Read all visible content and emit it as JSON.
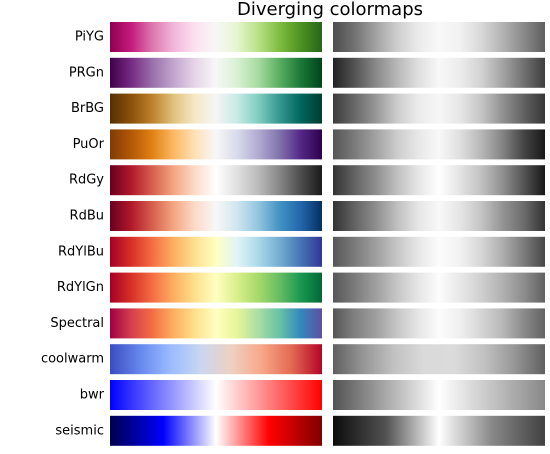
{
  "title": "Diverging colormaps",
  "colormaps": [
    {
      "name": "PiYG",
      "colors": [
        "#8e0152",
        "#c51b7d",
        "#de77ae",
        "#f1b6da",
        "#fde0ef",
        "#f7f7f7",
        "#e6f5d0",
        "#b8e186",
        "#7fbc41",
        "#4d9221",
        "#276419"
      ]
    },
    {
      "name": "PRGn",
      "colors": [
        "#40004b",
        "#762a83",
        "#9970ab",
        "#c2a5cf",
        "#e7d4e8",
        "#f7f7f7",
        "#d9f0d3",
        "#a6dba0",
        "#5aae61",
        "#1b7837",
        "#00441b"
      ]
    },
    {
      "name": "BrBG",
      "colors": [
        "#543005",
        "#8c510a",
        "#bf812d",
        "#dfc27d",
        "#f6e8c3",
        "#f5f5f5",
        "#c7eae5",
        "#80cdc1",
        "#35978f",
        "#01665e",
        "#003c30"
      ]
    },
    {
      "name": "PuOr",
      "colors": [
        "#7f3b08",
        "#b35806",
        "#e08214",
        "#fdb863",
        "#fee0b6",
        "#f7f7f7",
        "#d8daeb",
        "#b2abd2",
        "#8073ac",
        "#542788",
        "#2d004b"
      ]
    },
    {
      "name": "RdGy",
      "colors": [
        "#67001f",
        "#b2182b",
        "#d6604d",
        "#f4a582",
        "#fddbc7",
        "#ffffff",
        "#e0e0e0",
        "#bababa",
        "#878787",
        "#4d4d4d",
        "#1a1a1a"
      ]
    },
    {
      "name": "RdBu",
      "colors": [
        "#67001f",
        "#b2182b",
        "#d6604d",
        "#f4a582",
        "#fddbc7",
        "#f7f7f7",
        "#d1e5f0",
        "#92c5de",
        "#4393c3",
        "#2166ac",
        "#053061"
      ]
    },
    {
      "name": "RdYlBu",
      "colors": [
        "#a50026",
        "#d73027",
        "#f46d43",
        "#fdae61",
        "#fee090",
        "#ffffbf",
        "#e0f3f8",
        "#abd9e9",
        "#74add1",
        "#4575b4",
        "#313695"
      ]
    },
    {
      "name": "RdYlGn",
      "colors": [
        "#a50026",
        "#d73027",
        "#f46d43",
        "#fdae61",
        "#fee08b",
        "#ffffbf",
        "#d9ef8b",
        "#a6d96a",
        "#66bd63",
        "#1a9850",
        "#006837"
      ]
    },
    {
      "name": "Spectral",
      "colors": [
        "#9e0142",
        "#d53e4f",
        "#f46d43",
        "#fdae61",
        "#fee08b",
        "#ffffbf",
        "#e6f598",
        "#abdda4",
        "#66c2a5",
        "#3288bd",
        "#5e4fa2"
      ]
    },
    {
      "name": "coolwarm",
      "colors": [
        "#3b4cc0",
        "#6788ee",
        "#9abbff",
        "#c9d7f0",
        "#edd1c2",
        "#f7a889",
        "#e26952",
        "#b40426"
      ]
    },
    {
      "name": "bwr",
      "colors": [
        "#0000ff",
        "#ffffff",
        "#ff0000"
      ]
    },
    {
      "name": "seismic",
      "colors": [
        "#00004c",
        "#0000ff",
        "#ffffff",
        "#ff0000",
        "#7f0000"
      ]
    }
  ]
}
